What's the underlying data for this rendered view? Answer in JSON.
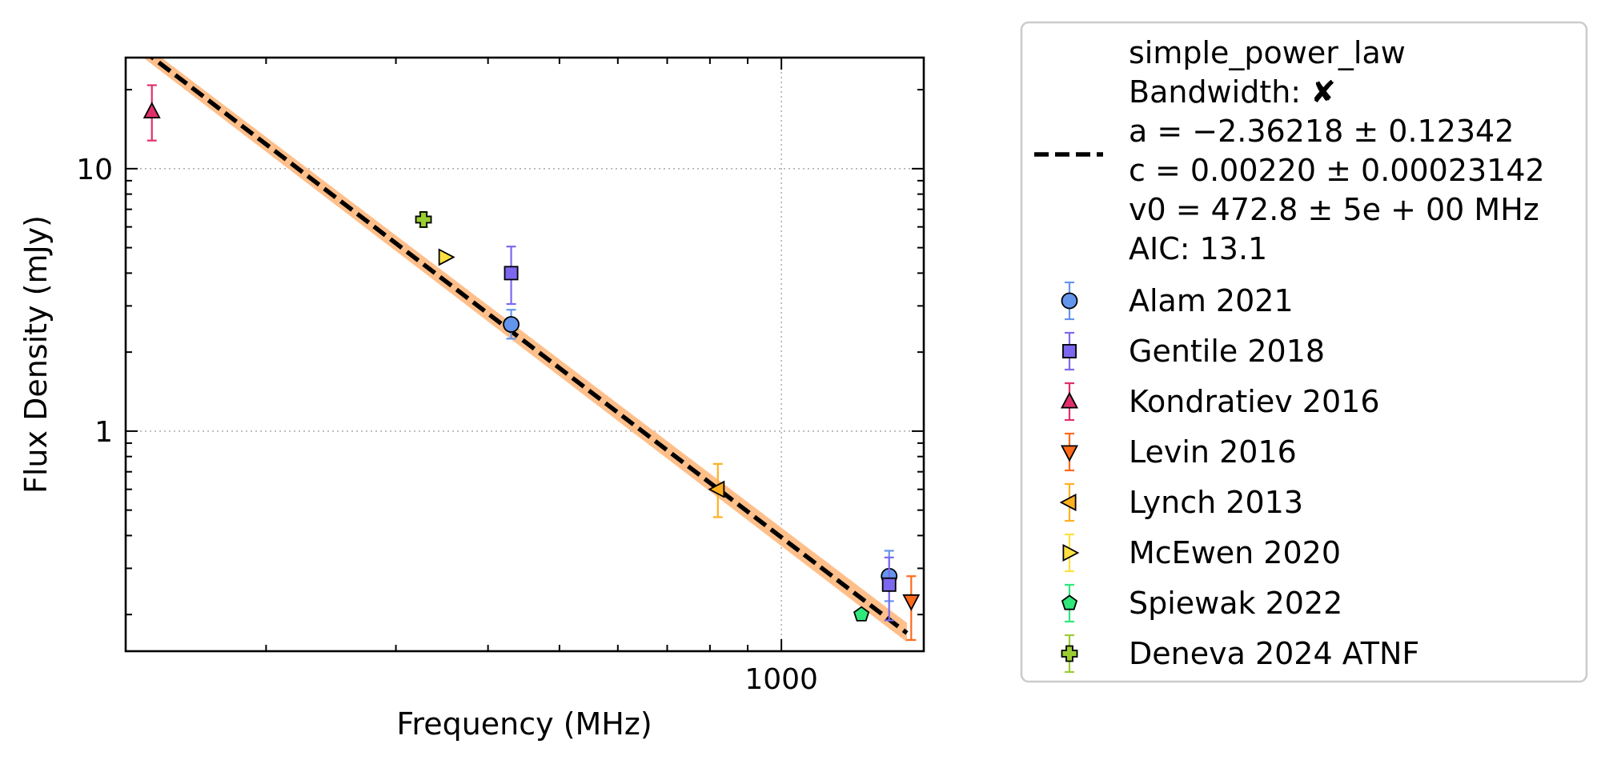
{
  "chart_data": {
    "type": "scatter",
    "title": "",
    "xlabel": "Frequency (MHz)",
    "ylabel": "Flux Density (mJy)",
    "xscale": "log",
    "yscale": "log",
    "xlim": [
      129,
      1560
    ],
    "ylim": [
      0.145,
      26.5
    ],
    "x_ticks": [
      {
        "value": 1000,
        "label": "1000"
      }
    ],
    "y_ticks": [
      {
        "value": 1,
        "label": "1"
      },
      {
        "value": 10,
        "label": "10"
      }
    ],
    "grid": true,
    "legend_position": "outside-right",
    "fit": {
      "model": "simple_power_law",
      "color": "#000000",
      "band_color": "#ffbf8a",
      "line_style": "dashed",
      "curve": [
        {
          "x": 129,
          "y": 31.7
        },
        {
          "x": 1480,
          "y": 0.17
        }
      ],
      "band_upper": [
        {
          "x": 129,
          "y": 33.6
        },
        {
          "x": 1480,
          "y": 0.186
        }
      ],
      "band_lower": [
        {
          "x": 129,
          "y": 29.8
        },
        {
          "x": 1480,
          "y": 0.157
        }
      ],
      "legend_lines": [
        "simple_power_law",
        "Bandwidth: ✘",
        "a = −2.36218 ± 0.12342",
        "c = 0.00220 ± 0.00023142",
        "v0 = 472.8 ± 5e + 00 MHz",
        "AIC: 13.1"
      ]
    },
    "series": [
      {
        "name": "Alam 2021",
        "marker": "circle",
        "color": "#6495ed",
        "points": [
          {
            "x": 430,
            "y": 2.55,
            "ylo": 2.25,
            "yhi": 2.9
          },
          {
            "x": 1400,
            "y": 0.28,
            "ylo": 0.225,
            "yhi": 0.35
          }
        ]
      },
      {
        "name": "Gentile 2018",
        "marker": "square",
        "color": "#7b68ee",
        "points": [
          {
            "x": 430,
            "y": 4.0,
            "ylo": 3.05,
            "yhi": 5.05
          },
          {
            "x": 1400,
            "y": 0.26,
            "ylo": 0.19,
            "yhi": 0.33
          }
        ]
      },
      {
        "name": "Kondratiev 2016",
        "marker": "triangle-up",
        "color": "#e0306a",
        "points": [
          {
            "x": 140,
            "y": 16.5,
            "ylo": 12.8,
            "yhi": 20.8
          }
        ]
      },
      {
        "name": "Levin 2016",
        "marker": "triangle-down",
        "color": "#ff6a1a",
        "points": [
          {
            "x": 1500,
            "y": 0.225,
            "ylo": 0.16,
            "yhi": 0.28
          }
        ]
      },
      {
        "name": "Lynch 2013",
        "marker": "triangle-left",
        "color": "#ffb020",
        "points": [
          {
            "x": 820,
            "y": 0.6,
            "ylo": 0.47,
            "yhi": 0.75
          }
        ]
      },
      {
        "name": "McEwen 2020",
        "marker": "triangle-right",
        "color": "#ffe040",
        "points": [
          {
            "x": 350,
            "y": 4.6
          }
        ]
      },
      {
        "name": "Spiewak 2022",
        "marker": "pentagon",
        "color": "#2ee87a",
        "points": [
          {
            "x": 1284,
            "y": 0.2
          }
        ]
      },
      {
        "name": "Deneva 2024 ATNF",
        "marker": "plus",
        "color": "#9acd32",
        "points": [
          {
            "x": 327,
            "y": 6.4,
            "ylo": 6.0,
            "yhi": 6.8
          }
        ]
      }
    ]
  }
}
